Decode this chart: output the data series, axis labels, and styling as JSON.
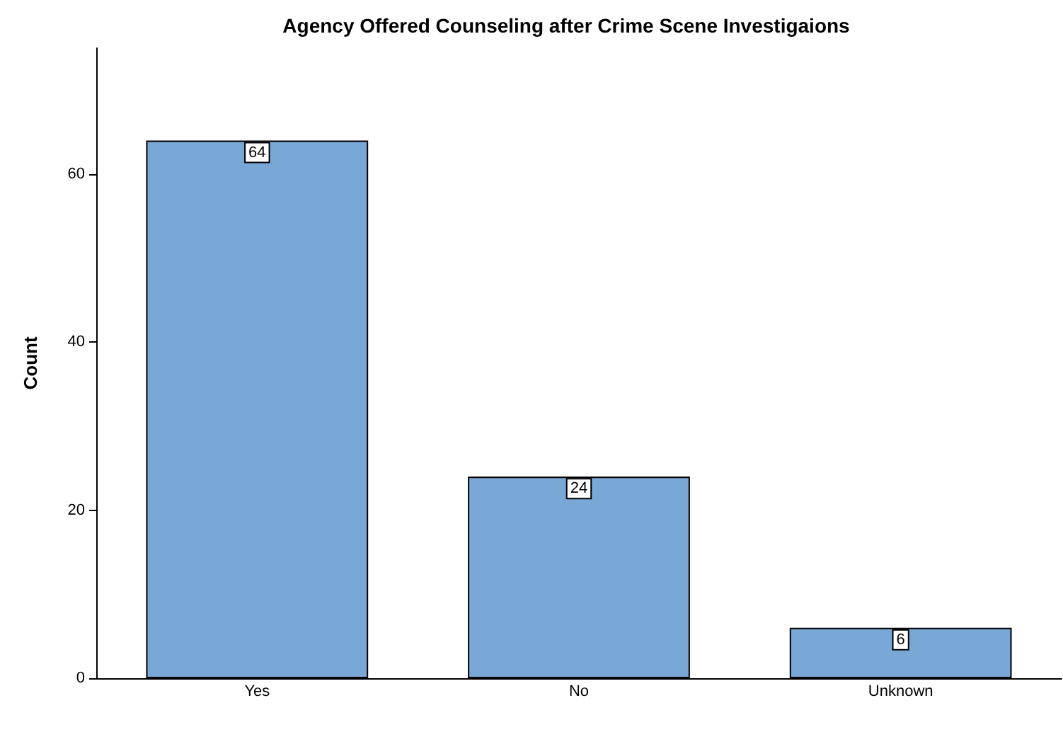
{
  "chart_data": {
    "type": "bar",
    "title": "Agency Offered Counseling after Crime Scene Investigaions",
    "ylabel": "Count",
    "categories": [
      "Yes",
      "No",
      "Unknown"
    ],
    "values": [
      64,
      24,
      6
    ],
    "color": "#79a7d6",
    "ylim": [
      0,
      75
    ],
    "yticks": [
      0,
      20,
      40,
      60
    ],
    "grid": false,
    "data_labels": true
  }
}
